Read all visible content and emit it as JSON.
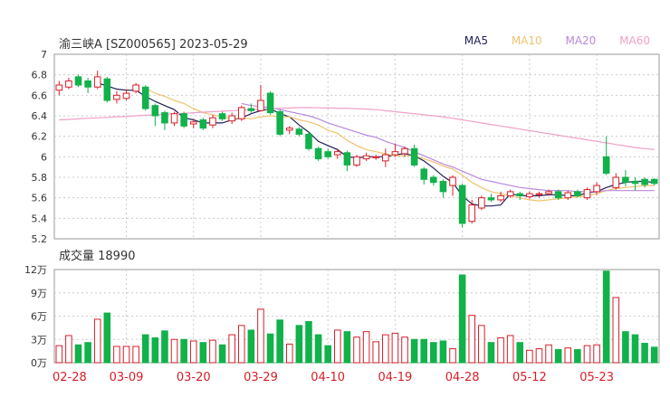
{
  "header": {
    "title": "渝三峡A [SZ000565]  2023-05-29"
  },
  "legend": [
    {
      "label": "MA5",
      "color": "#1e1e5a"
    },
    {
      "label": "MA10",
      "color": "#f0c36e"
    },
    {
      "label": "MA20",
      "color": "#b988dc"
    },
    {
      "label": "MA60",
      "color": "#f0a0c8"
    }
  ],
  "volume_label": "成交量 18990",
  "colors": {
    "up": "#d81e28",
    "down": "#11b14b",
    "grid": "#cccccc",
    "axis": "#999999",
    "date": "#d81e28"
  },
  "chart_data": {
    "type": "candlestick",
    "title": "渝三峡A [SZ000565]  2023-05-29",
    "price_axis": {
      "range": [
        5.2,
        7.0
      ],
      "ticks": [
        "7",
        "6.8",
        "6.6",
        "6.4",
        "6.2",
        "6",
        "5.8",
        "5.6",
        "5.4",
        "5.2"
      ]
    },
    "volume_axis": {
      "range": [
        0,
        12
      ],
      "unit": "万",
      "ticks": [
        "12万",
        "9万",
        "6万",
        "3万",
        "0万"
      ]
    },
    "x_ticks": [
      {
        "index": 0,
        "label": "02-28"
      },
      {
        "index": 7,
        "label": "03-09"
      },
      {
        "index": 14,
        "label": "03-20"
      },
      {
        "index": 21,
        "label": "03-29"
      },
      {
        "index": 28,
        "label": "04-10"
      },
      {
        "index": 35,
        "label": "04-19"
      },
      {
        "index": 42,
        "label": "04-28"
      },
      {
        "index": 49,
        "label": "05-12"
      },
      {
        "index": 56,
        "label": "05-23"
      }
    ],
    "candles": [
      {
        "o": 6.65,
        "c": 6.7,
        "h": 6.74,
        "l": 6.6,
        "v": 2.2
      },
      {
        "o": 6.68,
        "c": 6.74,
        "h": 6.77,
        "l": 6.66,
        "v": 3.5
      },
      {
        "o": 6.78,
        "c": 6.7,
        "h": 6.8,
        "l": 6.68,
        "v": 2.3
      },
      {
        "o": 6.74,
        "c": 6.68,
        "h": 6.77,
        "l": 6.62,
        "v": 2.6
      },
      {
        "o": 6.68,
        "c": 6.78,
        "h": 6.84,
        "l": 6.66,
        "v": 5.6
      },
      {
        "o": 6.76,
        "c": 6.55,
        "h": 6.78,
        "l": 6.53,
        "v": 6.4
      },
      {
        "o": 6.56,
        "c": 6.6,
        "h": 6.64,
        "l": 6.52,
        "v": 2.1
      },
      {
        "o": 6.57,
        "c": 6.62,
        "h": 6.66,
        "l": 6.55,
        "v": 2.1
      },
      {
        "o": 6.64,
        "c": 6.7,
        "h": 6.72,
        "l": 6.62,
        "v": 2.1
      },
      {
        "o": 6.68,
        "c": 6.47,
        "h": 6.7,
        "l": 6.45,
        "v": 3.6
      },
      {
        "o": 6.5,
        "c": 6.4,
        "h": 6.52,
        "l": 6.3,
        "v": 3.2
      },
      {
        "o": 6.43,
        "c": 6.33,
        "h": 6.45,
        "l": 6.26,
        "v": 4.1
      },
      {
        "o": 6.33,
        "c": 6.42,
        "h": 6.44,
        "l": 6.3,
        "v": 3.0
      },
      {
        "o": 6.42,
        "c": 6.3,
        "h": 6.44,
        "l": 6.28,
        "v": 3.0
      },
      {
        "o": 6.32,
        "c": 6.34,
        "h": 6.37,
        "l": 6.28,
        "v": 2.8
      },
      {
        "o": 6.36,
        "c": 6.28,
        "h": 6.38,
        "l": 6.26,
        "v": 2.6
      },
      {
        "o": 6.31,
        "c": 6.38,
        "h": 6.41,
        "l": 6.28,
        "v": 2.9
      },
      {
        "o": 6.42,
        "c": 6.37,
        "h": 6.44,
        "l": 6.35,
        "v": 2.3
      },
      {
        "o": 6.35,
        "c": 6.4,
        "h": 6.43,
        "l": 6.32,
        "v": 3.6
      },
      {
        "o": 6.37,
        "c": 6.48,
        "h": 6.5,
        "l": 6.35,
        "v": 4.8
      },
      {
        "o": 6.47,
        "c": 6.45,
        "h": 6.52,
        "l": 6.43,
        "v": 4.2
      },
      {
        "o": 6.45,
        "c": 6.55,
        "h": 6.7,
        "l": 6.44,
        "v": 6.9
      },
      {
        "o": 6.62,
        "c": 6.43,
        "h": 6.64,
        "l": 6.41,
        "v": 3.7
      },
      {
        "o": 6.44,
        "c": 6.22,
        "h": 6.46,
        "l": 6.2,
        "v": 5.5
      },
      {
        "o": 6.26,
        "c": 6.28,
        "h": 6.3,
        "l": 6.22,
        "v": 2.4
      },
      {
        "o": 6.27,
        "c": 6.22,
        "h": 6.29,
        "l": 6.2,
        "v": 4.8
      },
      {
        "o": 6.22,
        "c": 6.08,
        "h": 6.24,
        "l": 6.06,
        "v": 5.3
      },
      {
        "o": 6.08,
        "c": 5.98,
        "h": 6.1,
        "l": 5.96,
        "v": 3.6
      },
      {
        "o": 6.05,
        "c": 6.0,
        "h": 6.08,
        "l": 5.98,
        "v": 2.2
      },
      {
        "o": 6.02,
        "c": 6.05,
        "h": 6.08,
        "l": 5.98,
        "v": 4.2
      },
      {
        "o": 6.04,
        "c": 5.92,
        "h": 6.06,
        "l": 5.86,
        "v": 4.0
      },
      {
        "o": 5.92,
        "c": 6.0,
        "h": 6.02,
        "l": 5.9,
        "v": 3.3
      },
      {
        "o": 5.98,
        "c": 6.01,
        "h": 6.04,
        "l": 5.96,
        "v": 4.0
      },
      {
        "o": 5.99,
        "c": 6.0,
        "h": 6.02,
        "l": 5.97,
        "v": 2.7
      },
      {
        "o": 5.96,
        "c": 6.02,
        "h": 6.08,
        "l": 5.9,
        "v": 3.6
      },
      {
        "o": 6.02,
        "c": 6.05,
        "h": 6.13,
        "l": 6.0,
        "v": 3.8
      },
      {
        "o": 6.03,
        "c": 6.08,
        "h": 6.1,
        "l": 6.0,
        "v": 3.3
      },
      {
        "o": 6.08,
        "c": 5.92,
        "h": 6.12,
        "l": 5.9,
        "v": 3.0
      },
      {
        "o": 5.88,
        "c": 5.78,
        "h": 5.9,
        "l": 5.73,
        "v": 3.0
      },
      {
        "o": 5.8,
        "c": 5.75,
        "h": 5.82,
        "l": 5.72,
        "v": 2.6
      },
      {
        "o": 5.76,
        "c": 5.66,
        "h": 5.78,
        "l": 5.6,
        "v": 2.8
      },
      {
        "o": 5.72,
        "c": 5.8,
        "h": 5.82,
        "l": 5.62,
        "v": 1.8
      },
      {
        "o": 5.72,
        "c": 5.35,
        "h": 5.74,
        "l": 5.31,
        "v": 11.3
      },
      {
        "o": 5.37,
        "c": 5.53,
        "h": 5.58,
        "l": 5.35,
        "v": 6.1
      },
      {
        "o": 5.5,
        "c": 5.6,
        "h": 5.62,
        "l": 5.48,
        "v": 4.8
      },
      {
        "o": 5.6,
        "c": 5.58,
        "h": 5.64,
        "l": 5.56,
        "v": 2.6
      },
      {
        "o": 5.58,
        "c": 5.62,
        "h": 5.66,
        "l": 5.56,
        "v": 3.2
      },
      {
        "o": 5.62,
        "c": 5.66,
        "h": 5.68,
        "l": 5.6,
        "v": 3.5
      },
      {
        "o": 5.64,
        "c": 5.62,
        "h": 5.66,
        "l": 5.58,
        "v": 2.6
      },
      {
        "o": 5.61,
        "c": 5.64,
        "h": 5.66,
        "l": 5.59,
        "v": 1.6
      },
      {
        "o": 5.63,
        "c": 5.64,
        "h": 5.66,
        "l": 5.6,
        "v": 1.8
      },
      {
        "o": 5.64,
        "c": 5.66,
        "h": 5.68,
        "l": 5.62,
        "v": 2.3
      },
      {
        "o": 5.66,
        "c": 5.6,
        "h": 5.68,
        "l": 5.58,
        "v": 1.7
      },
      {
        "o": 5.6,
        "c": 5.65,
        "h": 5.67,
        "l": 5.58,
        "v": 1.9
      },
      {
        "o": 5.66,
        "c": 5.62,
        "h": 5.68,
        "l": 5.6,
        "v": 1.7
      },
      {
        "o": 5.6,
        "c": 5.68,
        "h": 5.7,
        "l": 5.58,
        "v": 2.2
      },
      {
        "o": 5.66,
        "c": 5.72,
        "h": 5.75,
        "l": 5.63,
        "v": 2.3
      },
      {
        "o": 6.0,
        "c": 5.84,
        "h": 6.2,
        "l": 5.82,
        "v": 11.8
      },
      {
        "o": 5.7,
        "c": 5.8,
        "h": 5.84,
        "l": 5.68,
        "v": 8.4
      },
      {
        "o": 5.8,
        "c": 5.75,
        "h": 5.87,
        "l": 5.71,
        "v": 4.0
      },
      {
        "o": 5.76,
        "c": 5.74,
        "h": 5.8,
        "l": 5.67,
        "v": 3.6
      },
      {
        "o": 5.78,
        "c": 5.73,
        "h": 5.8,
        "l": 5.7,
        "v": 2.5
      },
      {
        "o": 5.78,
        "c": 5.74,
        "h": 5.79,
        "l": 5.72,
        "v": 2.0
      }
    ],
    "ma_series": [
      {
        "name": "MA5",
        "color": "#1e1e5a",
        "values": [
          null,
          null,
          null,
          null,
          6.72,
          6.69,
          6.66,
          6.65,
          6.65,
          6.59,
          6.54,
          6.5,
          6.46,
          6.38,
          6.36,
          6.33,
          6.33,
          6.33,
          6.36,
          6.38,
          6.42,
          6.45,
          6.47,
          6.42,
          6.39,
          6.31,
          6.24,
          6.15,
          6.11,
          6.07,
          6.0,
          5.99,
          6.0,
          6.0,
          6.0,
          6.02,
          6.03,
          6.01,
          5.96,
          5.89,
          5.81,
          5.75,
          5.62,
          5.54,
          5.52,
          5.52,
          5.53,
          5.64,
          5.62,
          5.62,
          5.62,
          5.63,
          5.63,
          5.62,
          5.62,
          5.65,
          5.66,
          5.7,
          5.73,
          5.75,
          5.76,
          5.76,
          5.75
        ]
      },
      {
        "name": "MA10",
        "color": "#f0c36e",
        "values": [
          null,
          null,
          null,
          null,
          null,
          null,
          null,
          null,
          null,
          6.67,
          6.62,
          6.59,
          6.55,
          6.52,
          6.47,
          6.43,
          6.41,
          6.39,
          6.37,
          6.38,
          6.37,
          6.39,
          6.4,
          6.39,
          6.39,
          6.36,
          6.34,
          6.31,
          6.26,
          6.23,
          6.16,
          6.11,
          6.07,
          6.05,
          6.03,
          6.01,
          6.01,
          6.01,
          5.98,
          5.95,
          5.91,
          5.88,
          5.82,
          5.75,
          5.7,
          5.66,
          5.64,
          5.62,
          5.6,
          5.58,
          5.57,
          5.58,
          5.59,
          5.6,
          5.61,
          5.62,
          5.64,
          5.67,
          5.69,
          5.7,
          5.71,
          5.72,
          5.72
        ]
      },
      {
        "name": "MA20",
        "color": "#b988dc",
        "values": [
          null,
          null,
          null,
          null,
          null,
          null,
          null,
          null,
          null,
          null,
          null,
          null,
          null,
          null,
          null,
          null,
          null,
          null,
          null,
          6.52,
          6.5,
          6.49,
          6.48,
          6.46,
          6.44,
          6.42,
          6.4,
          6.37,
          6.33,
          6.3,
          6.27,
          6.24,
          6.21,
          6.19,
          6.15,
          6.12,
          6.09,
          6.05,
          6.01,
          5.97,
          5.93,
          5.9,
          5.86,
          5.82,
          5.78,
          5.76,
          5.74,
          5.72,
          5.7,
          5.69,
          5.68,
          5.67,
          5.67,
          5.67,
          5.66,
          5.66,
          5.66,
          5.67,
          5.67,
          5.67,
          5.67,
          5.67,
          5.67
        ]
      },
      {
        "name": "MA60",
        "color": "#f0a0c8",
        "values": [
          6.36,
          6.365,
          6.37,
          6.375,
          6.38,
          6.385,
          6.39,
          6.395,
          6.4,
          6.405,
          6.41,
          6.415,
          6.42,
          6.425,
          6.43,
          6.435,
          6.44,
          6.445,
          6.45,
          6.455,
          6.46,
          6.465,
          6.47,
          6.473,
          6.476,
          6.479,
          6.48,
          6.478,
          6.476,
          6.474,
          6.472,
          6.47,
          6.465,
          6.46,
          6.45,
          6.44,
          6.43,
          6.42,
          6.41,
          6.4,
          6.39,
          6.375,
          6.36,
          6.345,
          6.33,
          6.315,
          6.3,
          6.285,
          6.27,
          6.255,
          6.24,
          6.225,
          6.21,
          6.195,
          6.18,
          6.165,
          6.15,
          6.135,
          6.12,
          6.105,
          6.09,
          6.08,
          6.07
        ]
      }
    ]
  }
}
